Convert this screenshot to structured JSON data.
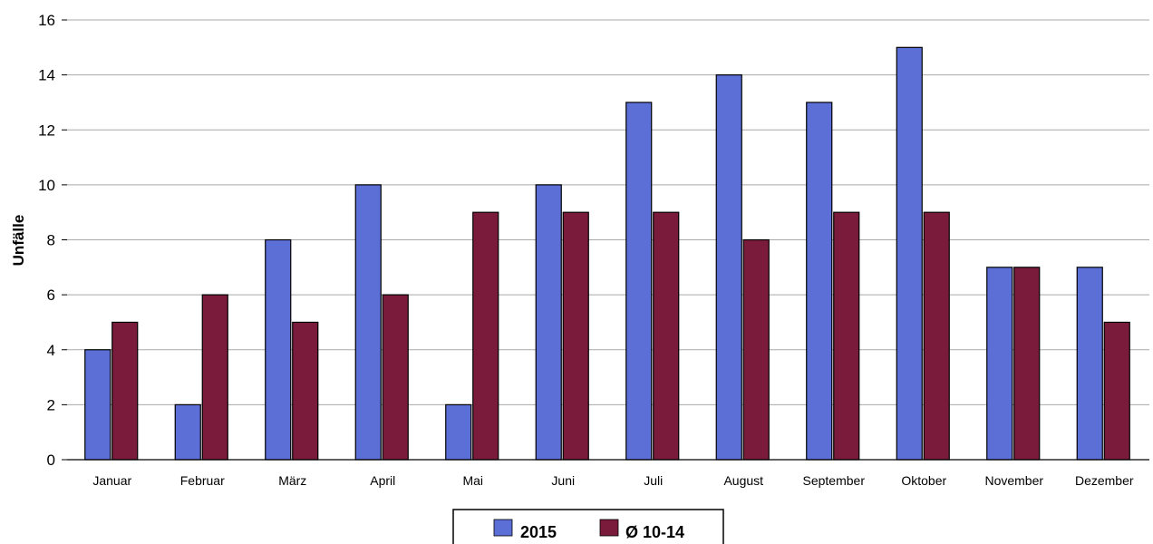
{
  "chart_data": {
    "type": "bar",
    "title": "",
    "xlabel": "",
    "ylabel": "Unfälle",
    "ylim": [
      0,
      16
    ],
    "yticks": [
      0,
      2,
      4,
      6,
      8,
      10,
      12,
      14,
      16
    ],
    "grid": true,
    "legend_position": "bottom",
    "categories": [
      "Januar",
      "Februar",
      "März",
      "April",
      "Mai",
      "Juni",
      "Juli",
      "August",
      "September",
      "Oktober",
      "November",
      "Dezember"
    ],
    "series": [
      {
        "name": "2015",
        "color": "#5b6fd6",
        "values": [
          4,
          2,
          8,
          10,
          2,
          10,
          13,
          14,
          13,
          15,
          7,
          7
        ]
      },
      {
        "name": "Ø 10-14",
        "color": "#7a1b3c",
        "values": [
          5,
          6,
          5,
          6,
          9,
          9,
          9,
          8,
          9,
          9,
          7,
          5
        ]
      }
    ]
  }
}
